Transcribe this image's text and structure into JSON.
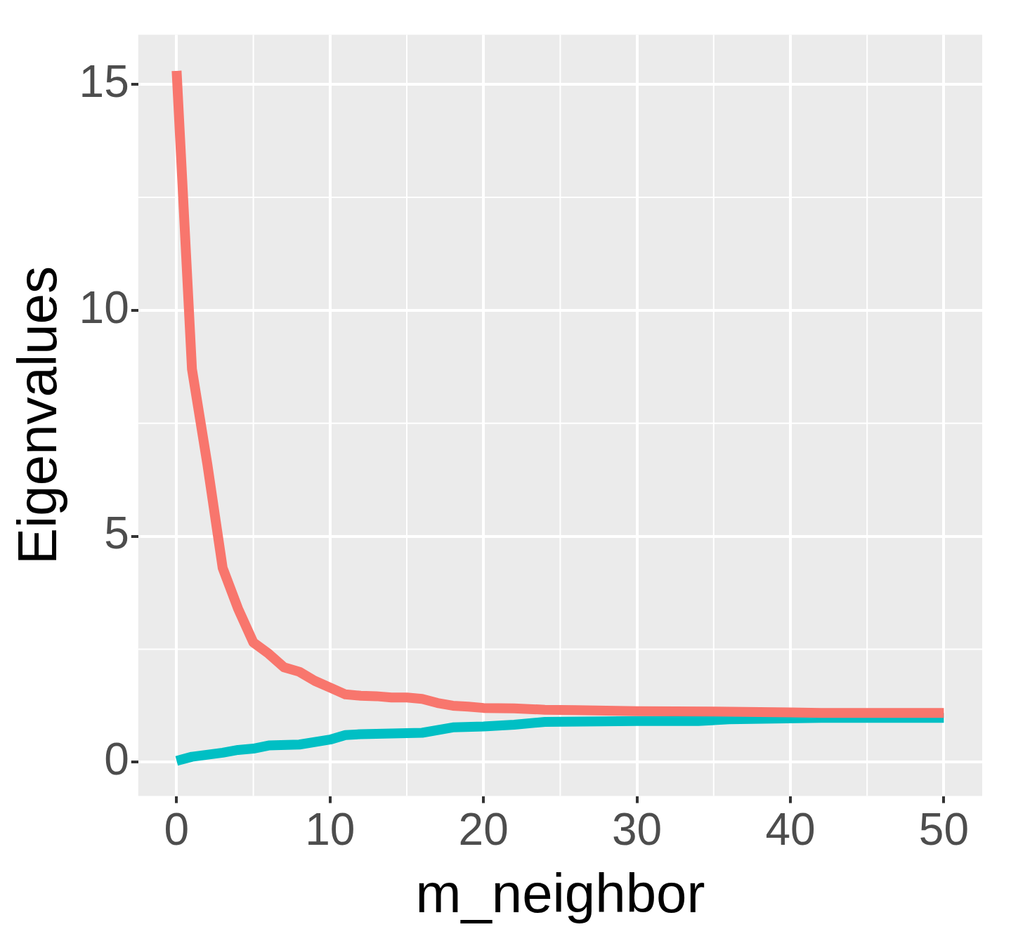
{
  "chart_data": {
    "type": "line",
    "xlabel": "m_neighbor",
    "ylabel": "Eigenvalues",
    "xlim": [
      -2.5,
      52.5
    ],
    "ylim": [
      -0.75,
      16.1
    ],
    "xticks": [
      0,
      10,
      20,
      30,
      40,
      50
    ],
    "yticks": [
      0,
      5,
      10,
      15
    ],
    "grid": true,
    "legend": false,
    "marker": "none",
    "line_style": "solid",
    "series": [
      {
        "color": "#f8766d",
        "x": [
          0,
          1,
          2,
          3,
          4,
          5,
          6,
          7,
          8,
          9,
          10,
          11,
          12,
          13,
          14,
          15,
          16,
          17,
          18,
          19,
          20,
          22,
          24,
          26,
          30,
          35,
          40,
          42,
          50
        ],
        "values": [
          15.3,
          8.7,
          6.6,
          4.3,
          3.4,
          2.65,
          2.4,
          2.1,
          2.0,
          1.8,
          1.65,
          1.5,
          1.47,
          1.46,
          1.43,
          1.43,
          1.4,
          1.31,
          1.25,
          1.23,
          1.2,
          1.19,
          1.16,
          1.15,
          1.13,
          1.12,
          1.1,
          1.09,
          1.09
        ]
      },
      {
        "color": "#00bfc4",
        "x": [
          0,
          1,
          3,
          4,
          5,
          6,
          8,
          10,
          11,
          12,
          16,
          18,
          20,
          22,
          24,
          30,
          34,
          36,
          42,
          50
        ],
        "values": [
          0.03,
          0.12,
          0.21,
          0.27,
          0.3,
          0.37,
          0.39,
          0.5,
          0.6,
          0.62,
          0.65,
          0.77,
          0.79,
          0.83,
          0.89,
          0.91,
          0.91,
          0.95,
          0.98,
          0.98
        ]
      }
    ]
  }
}
